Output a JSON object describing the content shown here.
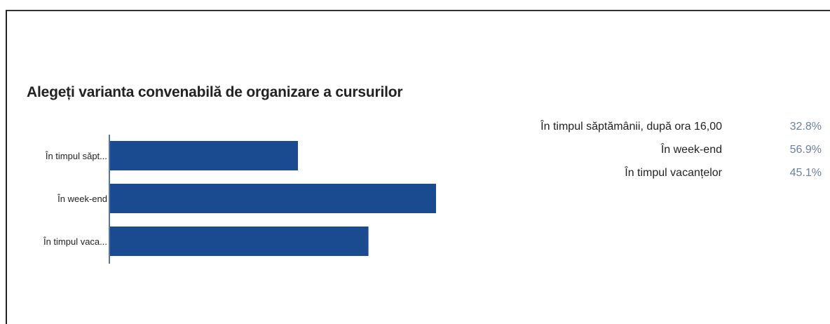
{
  "chart_data": {
    "type": "bar",
    "orientation": "horizontal",
    "title": "Alegeți varianta convenabilă de organizare a cursurilor",
    "categories": [
      "În timpul săptămânii, după ora 16,00",
      "În week-end",
      "În timpul vacanțelor"
    ],
    "category_labels": [
      "În timpul săpt...",
      "În week-end",
      "În timpul vaca..."
    ],
    "values": [
      32.8,
      56.9,
      45.1
    ],
    "value_labels": [
      "32.8%",
      "56.9%",
      "45.1%"
    ],
    "xlabel": "",
    "ylabel": "",
    "grid": false,
    "legend_position": "right",
    "bar_color": "#1a4a8f"
  }
}
